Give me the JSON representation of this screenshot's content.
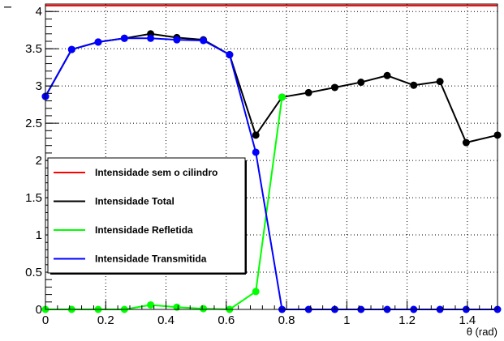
{
  "chart_data": {
    "type": "line",
    "xlabel": "θ (rad)",
    "ylabel": "I",
    "xlim": [
      0,
      1.5
    ],
    "ylim": [
      0,
      4.1
    ],
    "x_ticks": [
      "0",
      "0.2",
      "0.4",
      "0.6",
      "0.8",
      "1",
      "1.2",
      "1.4"
    ],
    "y_ticks": [
      "0",
      "0.5",
      "1",
      "1.5",
      "2",
      "2.5",
      "3",
      "3.5",
      "4"
    ],
    "grid": true,
    "legend_position": "bottom-left",
    "series": [
      {
        "name": "Intensidade sem o cilindro",
        "color": "#ff0000",
        "markers": false,
        "x": [
          0,
          1.5
        ],
        "y": [
          4.08,
          4.08
        ]
      },
      {
        "name": "Intensidade Total",
        "color": "#000000",
        "markers": true,
        "x": [
          0,
          0.087,
          0.175,
          0.262,
          0.349,
          0.436,
          0.524,
          0.611,
          0.698,
          0.785,
          0.873,
          0.96,
          1.047,
          1.134,
          1.222,
          1.309,
          1.396,
          1.5
        ],
        "y": [
          2.86,
          3.49,
          3.59,
          3.64,
          3.7,
          3.65,
          3.62,
          3.42,
          2.34,
          2.85,
          2.91,
          2.98,
          3.05,
          3.14,
          3.01,
          3.06,
          2.24,
          2.34
        ]
      },
      {
        "name": "Intensidade Refletida",
        "color": "#00ff00",
        "markers": true,
        "x": [
          0,
          0.087,
          0.175,
          0.262,
          0.349,
          0.436,
          0.524,
          0.611,
          0.698,
          0.785
        ],
        "y": [
          0.0,
          0.0,
          0.0,
          0.0,
          0.06,
          0.03,
          0.01,
          0.0,
          0.24,
          2.85
        ]
      },
      {
        "name": "Intensidade Transmitida",
        "color": "#0000ff",
        "markers": true,
        "x": [
          0,
          0.087,
          0.175,
          0.262,
          0.349,
          0.436,
          0.524,
          0.611,
          0.698,
          0.785,
          0.873,
          0.96,
          1.047,
          1.134,
          1.222,
          1.309,
          1.396,
          1.5
        ],
        "y": [
          2.86,
          3.49,
          3.59,
          3.64,
          3.64,
          3.62,
          3.61,
          3.42,
          2.11,
          0.0,
          0.0,
          0.0,
          0.0,
          0.0,
          0.0,
          0.0,
          0.0,
          0.0
        ]
      }
    ],
    "legend": [
      "Intensidade sem o cilindro",
      "Intensidade Total",
      "Intensidade Refletida",
      "Intensidade Transmitida"
    ]
  }
}
